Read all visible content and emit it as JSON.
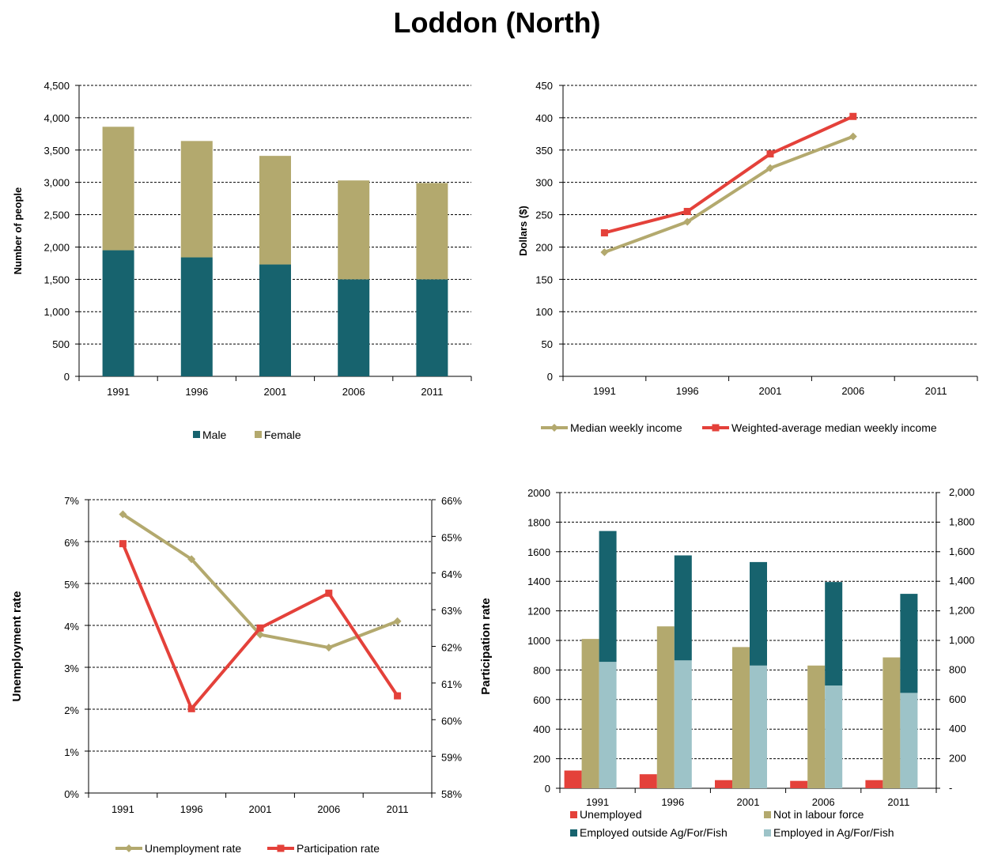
{
  "title": "Loddon (North)",
  "colors": {
    "teal": "#17636E",
    "tan": "#B3A96E",
    "red": "#E4413A",
    "lightblue": "#9DC3C8"
  },
  "chart_data": [
    {
      "id": "population",
      "type": "bar",
      "stacked": true,
      "categories": [
        "1991",
        "1996",
        "2001",
        "2006",
        "2011"
      ],
      "series": [
        {
          "name": "Male",
          "values": [
            1950,
            1840,
            1730,
            1500,
            1500
          ]
        },
        {
          "name": "Female",
          "values": [
            1910,
            1800,
            1680,
            1530,
            1490
          ]
        }
      ],
      "ylabel": "Number of people",
      "ylim": [
        0,
        4500
      ],
      "yticks": [
        "0",
        "500",
        "1,000",
        "1,500",
        "2,000",
        "2,500",
        "3,000",
        "3,500",
        "4,000",
        "4,500"
      ],
      "grid": true,
      "legend": "bottom"
    },
    {
      "id": "income",
      "type": "line",
      "categories": [
        "1991",
        "1996",
        "2001",
        "2006",
        "2011"
      ],
      "series": [
        {
          "name": "Median weekly income",
          "values": [
            192,
            239,
            322,
            371,
            null
          ]
        },
        {
          "name": "Weighted-average median weekly income",
          "values": [
            222,
            255,
            344,
            402,
            null
          ]
        }
      ],
      "ylabel": "Dollars ($)",
      "ylim": [
        0,
        450
      ],
      "yticks": [
        "0",
        "50",
        "100",
        "150",
        "200",
        "250",
        "300",
        "350",
        "400",
        "450"
      ],
      "grid": true,
      "legend": "bottom"
    },
    {
      "id": "rates",
      "type": "line",
      "categories": [
        "1991",
        "1996",
        "2001",
        "2006",
        "2011"
      ],
      "series": [
        {
          "name": "Unemployment rate",
          "axis": "left",
          "values": [
            6.65,
            5.58,
            3.78,
            3.47,
            4.1
          ]
        },
        {
          "name": "Participation rate",
          "axis": "right",
          "values": [
            64.8,
            60.3,
            62.5,
            63.45,
            60.65
          ]
        }
      ],
      "ylabel": "Unemployment rate",
      "ylabel_right": "Participation rate",
      "ylim": [
        0,
        7
      ],
      "ylim_right": [
        58,
        66
      ],
      "yticks": [
        "0%",
        "1%",
        "2%",
        "3%",
        "4%",
        "5%",
        "6%",
        "7%"
      ],
      "yticks_right": [
        "58%",
        "59%",
        "60%",
        "61%",
        "62%",
        "63%",
        "64%",
        "65%",
        "66%"
      ],
      "grid": true,
      "legend": "bottom"
    },
    {
      "id": "labour",
      "type": "bar",
      "categories": [
        "1991",
        "1996",
        "2001",
        "2006",
        "2011"
      ],
      "series": [
        {
          "name": "Unemployed",
          "values": [
            120,
            95,
            55,
            50,
            55
          ]
        },
        {
          "name": "Not in labour force",
          "values": [
            1010,
            1095,
            955,
            830,
            885
          ]
        },
        {
          "name": "Employed in Ag/For/Fish",
          "values": [
            855,
            865,
            830,
            695,
            645
          ]
        },
        {
          "name": "Employed outside Ag/For/Fish",
          "values": [
            885,
            710,
            700,
            700,
            670
          ]
        }
      ],
      "stacked_columns": "Employed in Ag/For/Fish + Employed outside Ag/For/Fish",
      "ylim": [
        0,
        2000
      ],
      "yticks": [
        "0",
        "200",
        "400",
        "600",
        "800",
        "1000",
        "1200",
        "1400",
        "1600",
        "1800",
        "2000"
      ],
      "yticks_right": [
        "-",
        "200",
        "400",
        "600",
        "800",
        "1,000",
        "1,200",
        "1,400",
        "1,600",
        "1,800",
        "2,000"
      ],
      "grid": true,
      "legend": "bottom",
      "legend_order": [
        "Unemployed",
        "Not in labour force",
        "Employed outside Ag/For/Fish",
        "Employed in Ag/For/Fish"
      ]
    }
  ]
}
